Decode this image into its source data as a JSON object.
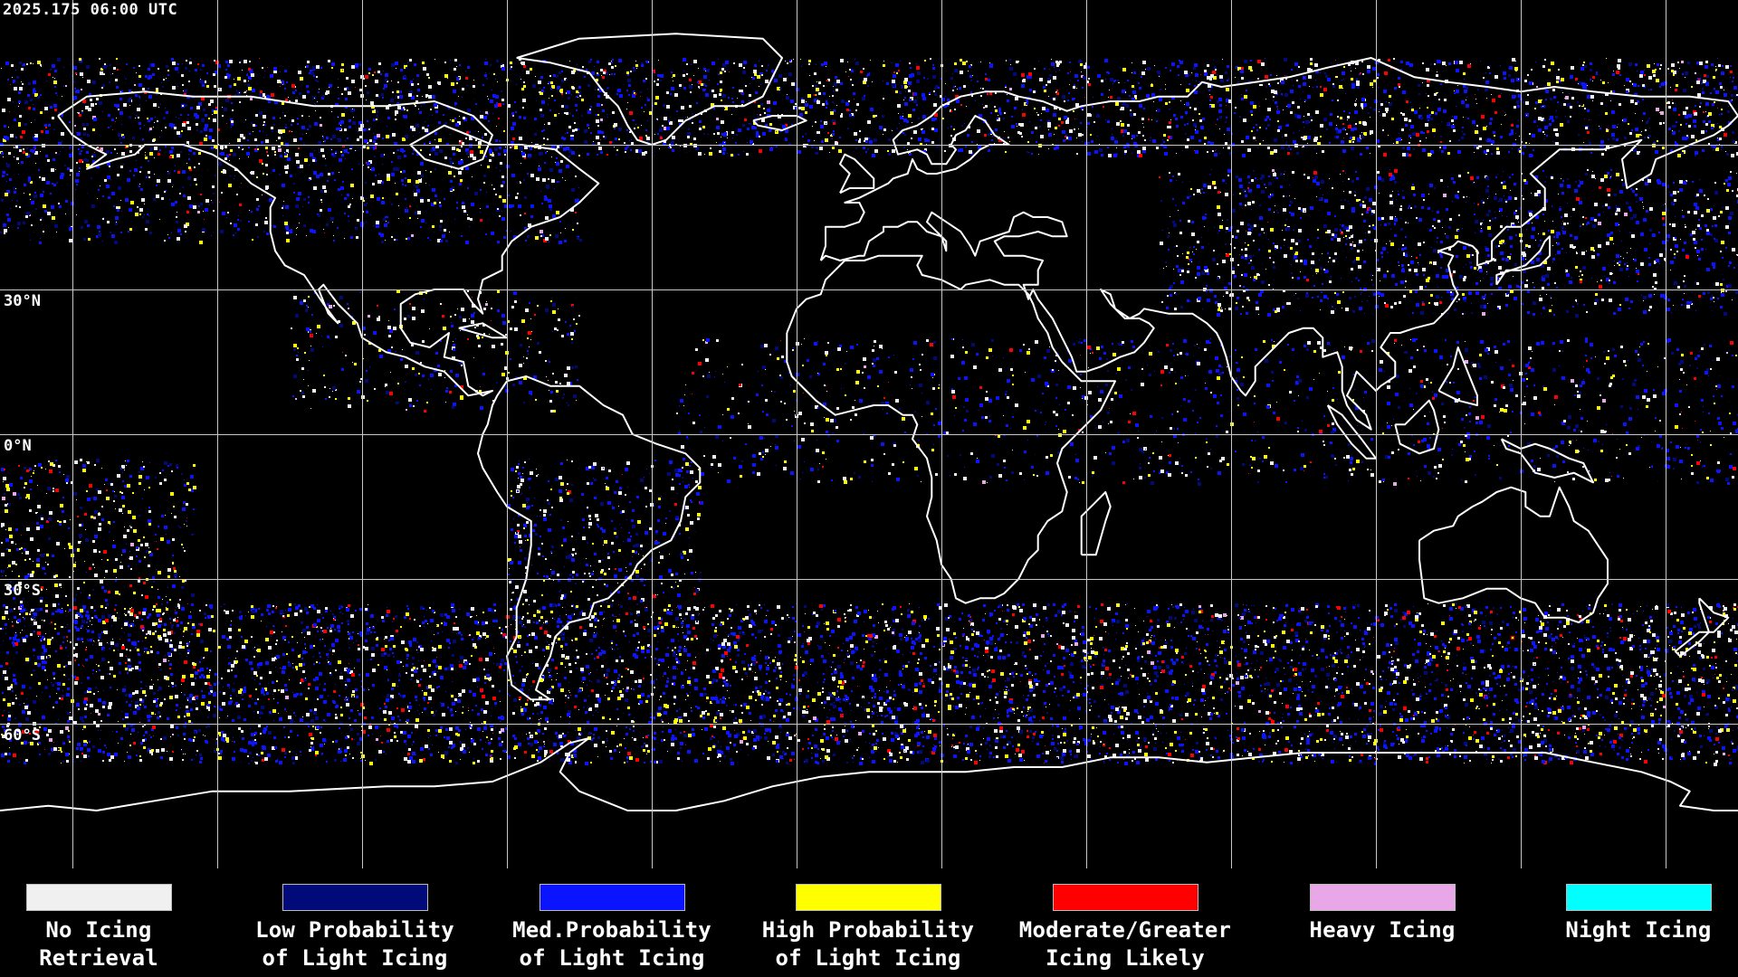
{
  "header": {
    "timestamp": "2025.175 06:00 UTC"
  },
  "map": {
    "projection": "global equirectangular",
    "background_color": "#000000",
    "grid_color": "#c8c8c8",
    "coastline_color": "#ffffff",
    "lat_labels": [
      "30°N",
      "0°N",
      "30°S",
      "60°S"
    ]
  },
  "legend": {
    "items": [
      {
        "line1": "No Icing",
        "line2": "Retrieval",
        "color": "#f0f0f0"
      },
      {
        "line1": "Low Probability",
        "line2": "of Light Icing",
        "color": "#000a78"
      },
      {
        "line1": "Med.Probability",
        "line2": "of Light Icing",
        "color": "#0a14ff"
      },
      {
        "line1": "High Probability",
        "line2": "of Light Icing",
        "color": "#ffff00"
      },
      {
        "line1": "Moderate/Greater",
        "line2": "Icing Likely",
        "color": "#ff0000"
      },
      {
        "line1": "Heavy Icing",
        "line2": "",
        "color": "#e8a8e8"
      },
      {
        "line1": "Night Icing",
        "line2": "",
        "color": "#00ffff"
      }
    ]
  }
}
